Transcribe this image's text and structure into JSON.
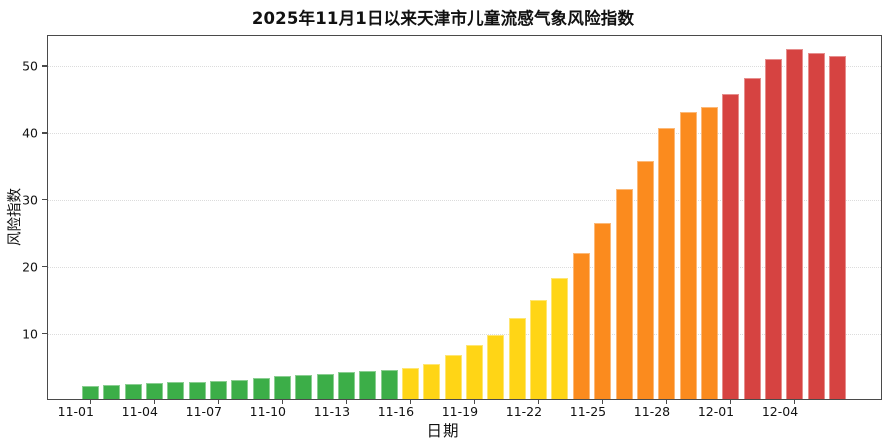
{
  "chart_data": {
    "type": "bar",
    "title": "2025年11月1日以来天津市儿童流感气象风险指数",
    "xlabel": "日期",
    "ylabel": "风险指数",
    "ylim": [
      0,
      54.5
    ],
    "yticks": [
      10,
      20,
      30,
      40,
      50
    ],
    "x_tick_labels": [
      "11-01",
      "11-04",
      "11-07",
      "11-10",
      "11-13",
      "11-16",
      "11-19",
      "11-22",
      "11-25",
      "11-28",
      "12-01",
      "12-04"
    ],
    "x_tick_every": 3,
    "grid": "horizontal-dotted",
    "legend": "none",
    "categories": [
      "11-01",
      "11-02",
      "11-03",
      "11-04",
      "11-05",
      "11-06",
      "11-07",
      "11-08",
      "11-09",
      "11-10",
      "11-11",
      "11-12",
      "11-13",
      "11-14",
      "11-15",
      "11-16",
      "11-17",
      "11-18",
      "11-19",
      "11-20",
      "11-21",
      "11-22",
      "11-23",
      "11-24",
      "11-25",
      "11-26",
      "11-27",
      "11-28",
      "11-29",
      "11-30",
      "12-01",
      "12-02",
      "12-03",
      "12-04",
      "12-05",
      "12-06"
    ],
    "values": [
      2.0,
      2.1,
      2.2,
      2.4,
      2.5,
      2.6,
      2.7,
      2.9,
      3.2,
      3.4,
      3.6,
      3.8,
      4.0,
      4.2,
      4.4,
      4.6,
      5.2,
      6.6,
      8.0,
      9.5,
      12.1,
      14.8,
      18.0,
      21.8,
      26.3,
      31.3,
      35.6,
      40.4,
      42.9,
      43.6,
      45.5,
      48.0,
      50.7,
      52.2,
      51.7,
      51.2
    ],
    "levels": [
      "green",
      "green",
      "green",
      "green",
      "green",
      "green",
      "green",
      "green",
      "green",
      "green",
      "green",
      "green",
      "green",
      "green",
      "green",
      "yellow",
      "yellow",
      "yellow",
      "yellow",
      "yellow",
      "yellow",
      "yellow",
      "yellow",
      "orange",
      "orange",
      "orange",
      "orange",
      "orange",
      "orange",
      "orange",
      "red",
      "red",
      "red",
      "red",
      "red",
      "red"
    ],
    "palette": {
      "green": "#3CAE48",
      "yellow": "#FFD516",
      "orange": "#FB8B1E",
      "red": "#D64341"
    }
  }
}
